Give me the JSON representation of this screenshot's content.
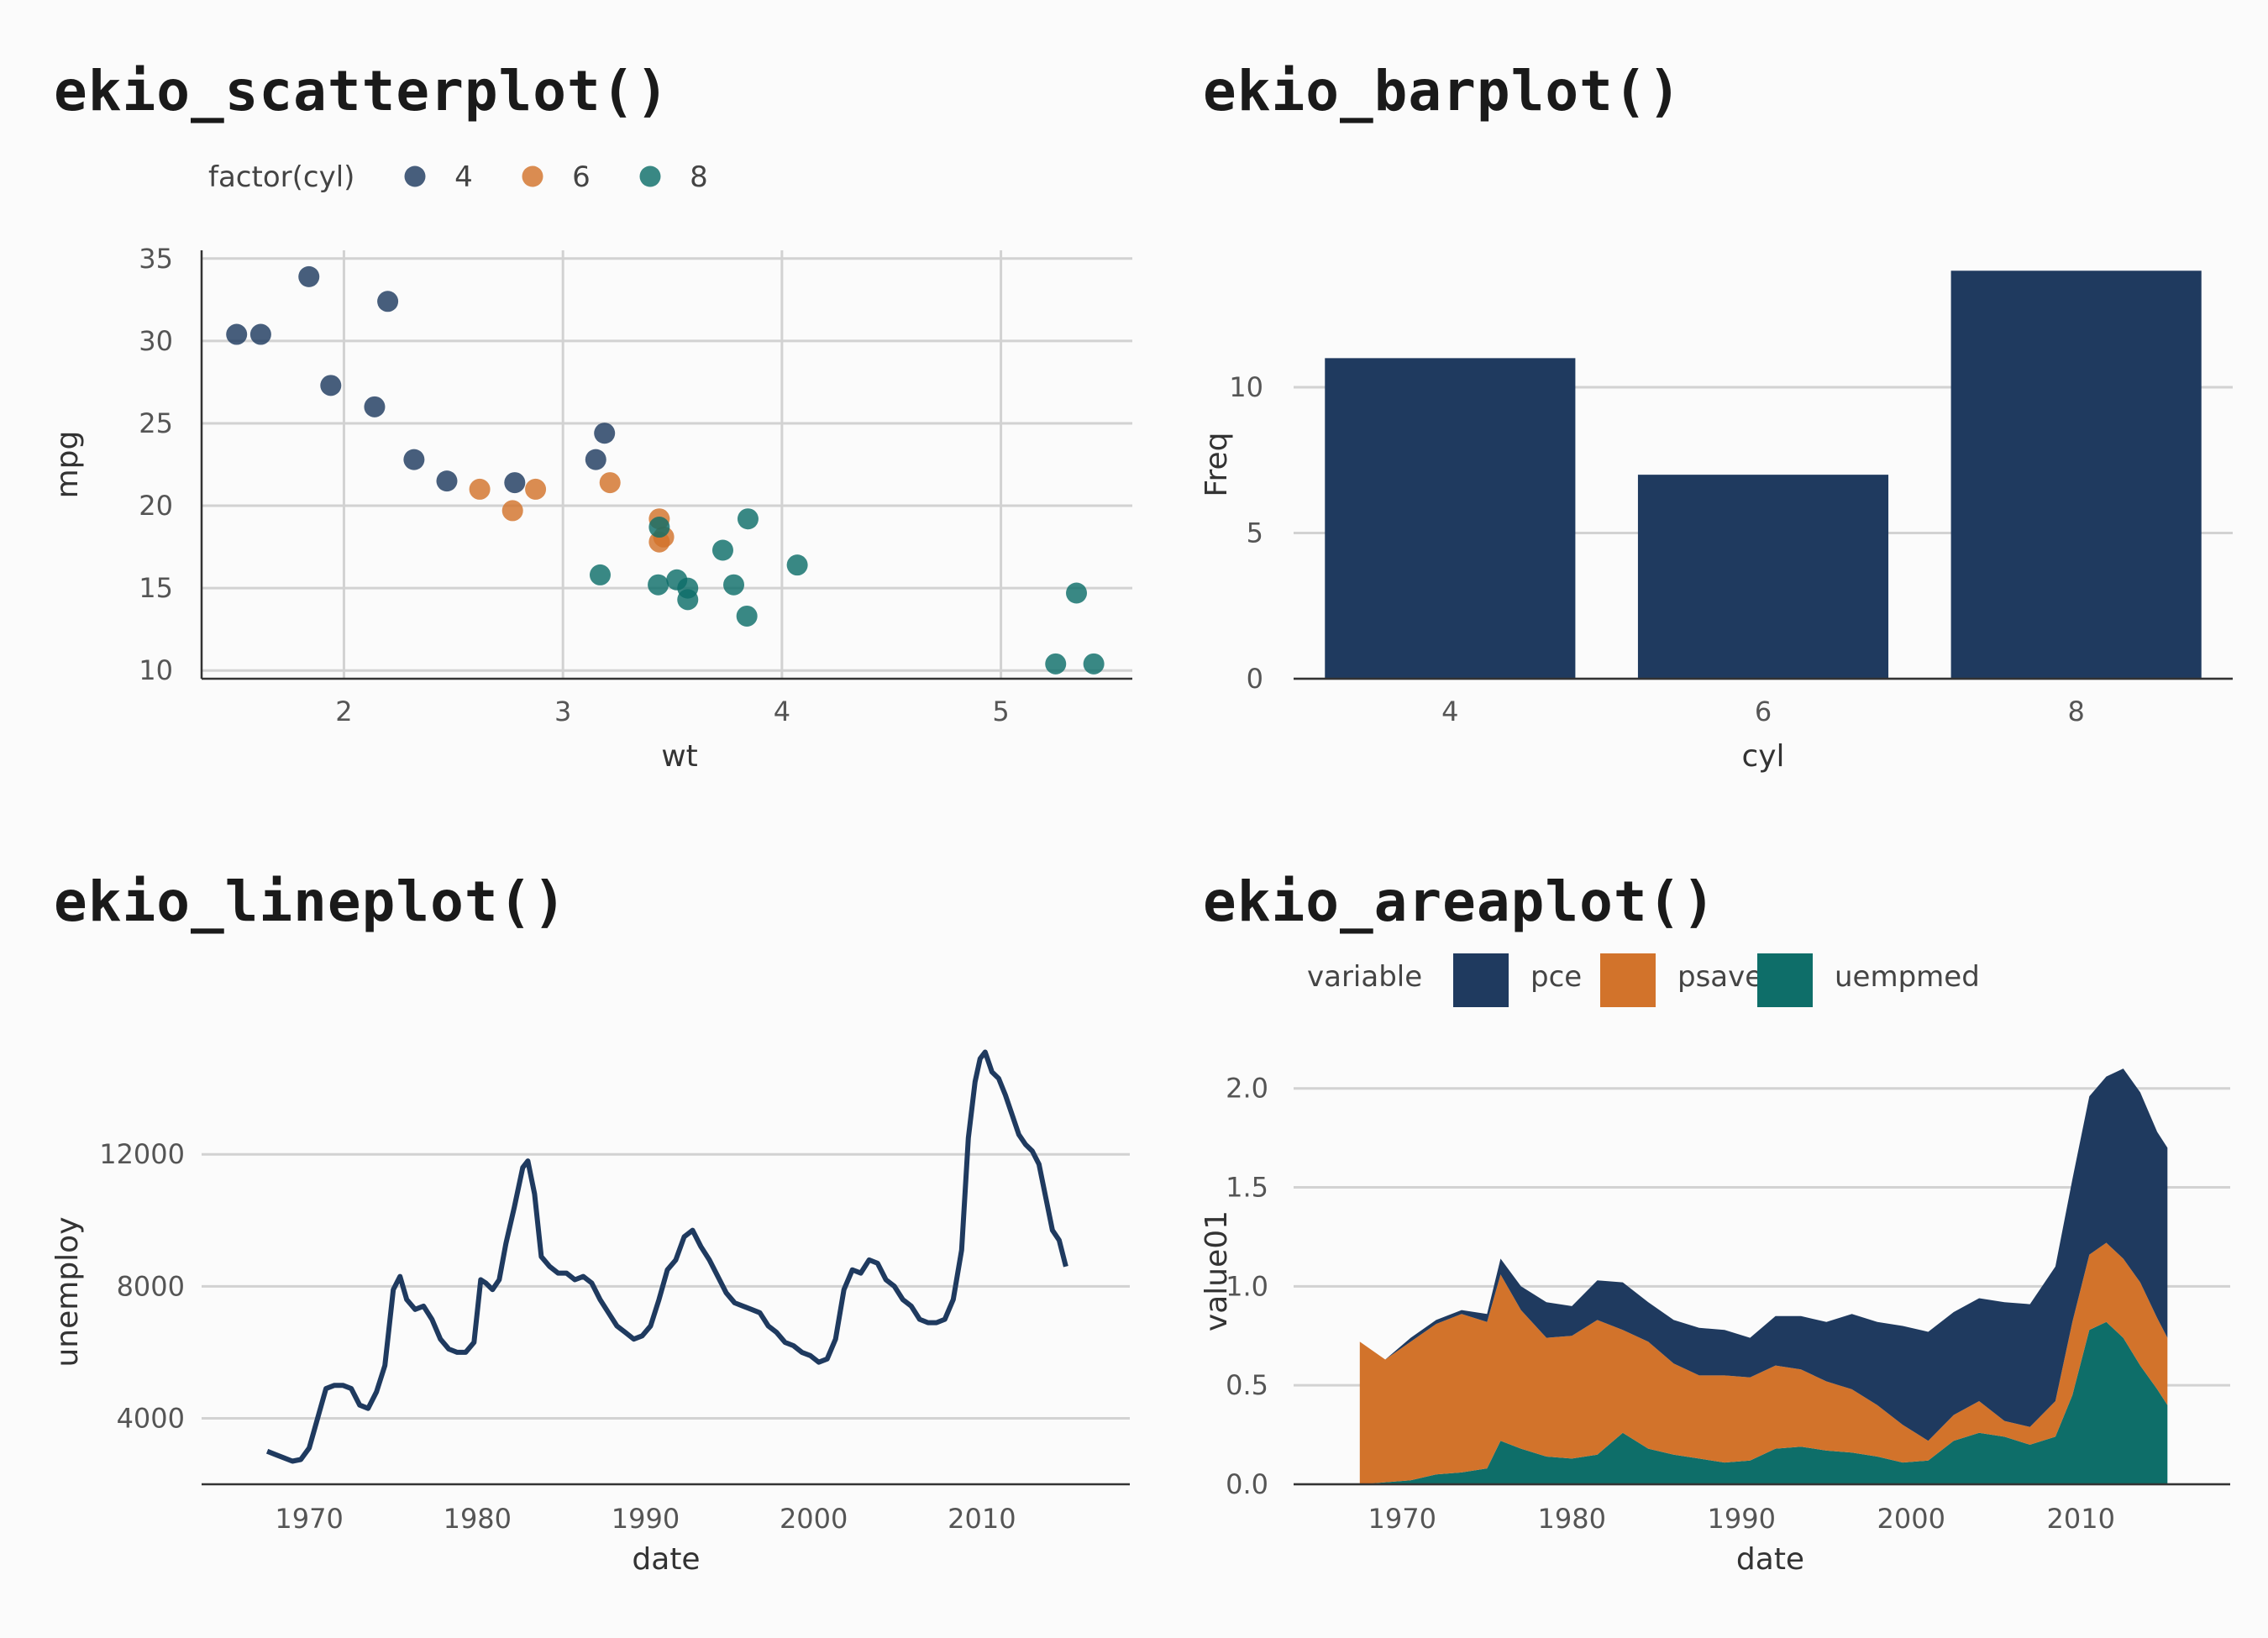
{
  "panels": {
    "scatter": {
      "title": "ekio_scatterplot()"
    },
    "bar": {
      "title": "ekio_barplot()"
    },
    "line": {
      "title": "ekio_lineplot()"
    },
    "area": {
      "title": "ekio_areaplot()"
    }
  },
  "colors": {
    "navy": "#1f3a5f",
    "orange": "#d2732b",
    "teal": "#0e6e69",
    "grid": "#d2d2d2"
  },
  "chart_data": [
    {
      "id": "scatter",
      "type": "scatter",
      "title": "ekio_scatterplot()",
      "xlabel": "wt",
      "ylabel": "mpg",
      "xlim": [
        1.35,
        5.6
      ],
      "ylim": [
        9.5,
        35.5
      ],
      "xticks": [
        2,
        3,
        4,
        5
      ],
      "yticks": [
        10,
        15,
        20,
        25,
        30,
        35
      ],
      "grid": true,
      "legend": {
        "title": "factor(cyl)",
        "position": "top"
      },
      "series": [
        {
          "name": "4",
          "color": "#1f3a5f",
          "points": [
            [
              1.51,
              30.4
            ],
            [
              1.62,
              30.4
            ],
            [
              1.84,
              33.9
            ],
            [
              1.94,
              27.3
            ],
            [
              2.14,
              26.0
            ],
            [
              2.2,
              32.4
            ],
            [
              2.32,
              22.8
            ],
            [
              2.47,
              21.5
            ],
            [
              2.78,
              21.4
            ],
            [
              3.15,
              22.8
            ],
            [
              3.19,
              24.4
            ]
          ]
        },
        {
          "name": "6",
          "color": "#d2732b",
          "points": [
            [
              2.62,
              21.0
            ],
            [
              2.77,
              19.7
            ],
            [
              2.875,
              21.0
            ],
            [
              3.215,
              21.4
            ],
            [
              3.44,
              19.2
            ],
            [
              3.44,
              17.8
            ],
            [
              3.46,
              18.1
            ]
          ]
        },
        {
          "name": "8",
          "color": "#0e6e69",
          "points": [
            [
              3.17,
              15.8
            ],
            [
              3.435,
              15.2
            ],
            [
              3.44,
              18.7
            ],
            [
              3.52,
              15.5
            ],
            [
              3.57,
              14.3
            ],
            [
              3.57,
              15.0
            ],
            [
              3.73,
              17.3
            ],
            [
              3.78,
              15.2
            ],
            [
              3.84,
              13.3
            ],
            [
              3.845,
              19.2
            ],
            [
              4.07,
              16.4
            ],
            [
              5.25,
              10.4
            ],
            [
              5.345,
              14.7
            ],
            [
              5.424,
              10.4
            ]
          ]
        }
      ]
    },
    {
      "id": "bar",
      "type": "bar",
      "title": "ekio_barplot()",
      "xlabel": "cyl",
      "ylabel": "Freq",
      "categories": [
        "4",
        "6",
        "8"
      ],
      "values": [
        11,
        7,
        14
      ],
      "ylim": [
        0,
        14.7
      ],
      "yticks": [
        0,
        5,
        10
      ],
      "color": "#1f3a5f",
      "grid": true
    },
    {
      "id": "line",
      "type": "line",
      "title": "ekio_lineplot()",
      "xlabel": "date",
      "ylabel": "unemploy",
      "xlim": [
        1963.6,
        2018.8
      ],
      "ylim": [
        2000,
        15800
      ],
      "xticks": [
        1970,
        1980,
        1990,
        2000,
        2010
      ],
      "yticks": [
        4000,
        8000,
        12000
      ],
      "color": "#1f3a5f",
      "grid": true,
      "x": [
        1967.5,
        1968.0,
        1968.5,
        1969.0,
        1969.5,
        1970.0,
        1970.5,
        1971.0,
        1971.5,
        1972.0,
        1972.5,
        1973.0,
        1973.5,
        1974.0,
        1974.5,
        1975.0,
        1975.4,
        1975.8,
        1976.3,
        1976.8,
        1977.3,
        1977.8,
        1978.3,
        1978.8,
        1979.3,
        1979.8,
        1980.2,
        1980.5,
        1980.9,
        1981.3,
        1981.7,
        1982.2,
        1982.7,
        1983.0,
        1983.4,
        1983.8,
        1984.3,
        1984.8,
        1985.3,
        1985.8,
        1986.3,
        1986.8,
        1987.3,
        1987.8,
        1988.3,
        1988.8,
        1989.3,
        1989.8,
        1990.3,
        1990.8,
        1991.3,
        1991.8,
        1992.3,
        1992.8,
        1993.3,
        1993.8,
        1994.3,
        1994.8,
        1995.3,
        1995.8,
        1996.3,
        1996.8,
        1997.3,
        1997.8,
        1998.3,
        1998.8,
        1999.3,
        1999.8,
        2000.3,
        2000.8,
        2001.3,
        2001.8,
        2002.3,
        2002.8,
        2003.3,
        2003.8,
        2004.3,
        2004.8,
        2005.3,
        2005.8,
        2006.3,
        2006.8,
        2007.3,
        2007.8,
        2008.3,
        2008.8,
        2009.2,
        2009.6,
        2009.9,
        2010.2,
        2010.6,
        2011.0,
        2011.4,
        2011.8,
        2012.2,
        2012.6,
        2013.0,
        2013.4,
        2013.8,
        2014.2,
        2014.6,
        2015.0
      ],
      "values": [
        3000,
        2900,
        2800,
        2700,
        2750,
        3100,
        4000,
        4900,
        5000,
        5000,
        4900,
        4400,
        4300,
        4800,
        5600,
        7900,
        8300,
        7600,
        7300,
        7400,
        7000,
        6400,
        6100,
        6000,
        6000,
        6300,
        8200,
        8100,
        7900,
        8200,
        9300,
        10400,
        11600,
        11800,
        10800,
        8900,
        8600,
        8400,
        8400,
        8200,
        8300,
        8100,
        7600,
        7200,
        6800,
        6600,
        6400,
        6500,
        6800,
        7600,
        8500,
        8800,
        9500,
        9700,
        9200,
        8800,
        8300,
        7800,
        7500,
        7400,
        7300,
        7200,
        6800,
        6600,
        6300,
        6200,
        6000,
        5900,
        5700,
        5800,
        6400,
        7900,
        8500,
        8400,
        8800,
        8700,
        8200,
        8000,
        7600,
        7400,
        7000,
        6900,
        6900,
        7000,
        7600,
        9100,
        12500,
        14200,
        14900,
        15100,
        14500,
        14300,
        13800,
        13200,
        12600,
        12300,
        12100,
        11700,
        10700,
        9700,
        9400,
        8600
      ]
    },
    {
      "id": "area",
      "type": "area",
      "title": "ekio_areaplot()",
      "xlabel": "date",
      "ylabel": "value01",
      "xlim": [
        1963.6,
        2018.8
      ],
      "ylim": [
        0,
        2.3
      ],
      "xticks": [
        1970,
        1980,
        1990,
        2000,
        2010
      ],
      "yticks": [
        0.0,
        0.5,
        1.0,
        1.5,
        2.0
      ],
      "ytick_labels": [
        "0.0",
        "0.5",
        "1.0",
        "1.5",
        "2.0"
      ],
      "grid": true,
      "legend": {
        "title": "variable",
        "position": "top"
      },
      "x": [
        1967.5,
        1969,
        1970.5,
        1972,
        1973.5,
        1975,
        1975.8,
        1977,
        1978.5,
        1980,
        1981.5,
        1983,
        1984.5,
        1986,
        1987.5,
        1989,
        1990.5,
        1992,
        1993.5,
        1995,
        1996.5,
        1998,
        1999.5,
        2001,
        2002.5,
        2004,
        2005.5,
        2007,
        2008.5,
        2009.5,
        2010.5,
        2011.5,
        2012.5,
        2013.5,
        2014.5,
        2015.1
      ],
      "series": [
        {
          "name": "uempmed",
          "color": "#0e6e69",
          "values": [
            0.0,
            0.01,
            0.02,
            0.05,
            0.06,
            0.08,
            0.22,
            0.18,
            0.14,
            0.13,
            0.15,
            0.26,
            0.18,
            0.15,
            0.13,
            0.11,
            0.12,
            0.18,
            0.19,
            0.17,
            0.16,
            0.14,
            0.11,
            0.12,
            0.22,
            0.26,
            0.24,
            0.2,
            0.24,
            0.45,
            0.78,
            0.82,
            0.74,
            0.6,
            0.48,
            0.4
          ]
        },
        {
          "name": "psavert",
          "color": "#d2732b",
          "values": [
            0.72,
            0.62,
            0.7,
            0.76,
            0.8,
            0.74,
            0.84,
            0.7,
            0.6,
            0.62,
            0.68,
            0.52,
            0.54,
            0.46,
            0.42,
            0.44,
            0.42,
            0.42,
            0.39,
            0.35,
            0.32,
            0.26,
            0.19,
            0.1,
            0.13,
            0.16,
            0.08,
            0.09,
            0.18,
            0.37,
            0.38,
            0.4,
            0.4,
            0.42,
            0.36,
            0.34
          ]
        },
        {
          "name": "pce",
          "color": "#1f3a5f",
          "values": [
            0.0,
            0.0,
            0.02,
            0.02,
            0.02,
            0.04,
            0.08,
            0.12,
            0.18,
            0.15,
            0.2,
            0.24,
            0.2,
            0.22,
            0.24,
            0.23,
            0.2,
            0.25,
            0.27,
            0.3,
            0.38,
            0.42,
            0.5,
            0.55,
            0.52,
            0.52,
            0.6,
            0.62,
            0.68,
            0.72,
            0.8,
            0.84,
            0.96,
            0.96,
            0.94,
            0.96
          ]
        }
      ]
    }
  ]
}
